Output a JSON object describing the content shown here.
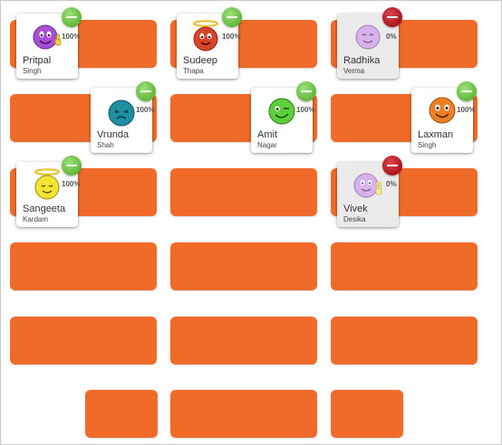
{
  "colors": {
    "desk": "#f06a2a",
    "present": "#5fb83a",
    "absent": "#a8141c"
  },
  "students": [
    {
      "first": "Pritpal",
      "last": "Singh",
      "percent": "100%",
      "status": "present",
      "avatar": "purple-smiley-thumbs-up-icon"
    },
    {
      "first": "Sudeep",
      "last": "Thapa",
      "percent": "100%",
      "status": "present",
      "avatar": "red-angel-smiley-icon"
    },
    {
      "first": "Radhika",
      "last": "Verma",
      "percent": "0%",
      "status": "absent",
      "avatar": "purple-smiley-icon"
    },
    {
      "first": "Vrunda",
      "last": "Shah",
      "percent": "100%",
      "status": "present",
      "avatar": "teal-smiley-icon"
    },
    {
      "first": "Amit",
      "last": "Nagar",
      "percent": "100%",
      "status": "present",
      "avatar": "green-winking-smiley-icon"
    },
    {
      "first": "Laxman",
      "last": "Singh",
      "percent": "100%",
      "status": "present",
      "avatar": "orange-smiley-icon"
    },
    {
      "first": "Sangeeta",
      "last": "Kardam",
      "percent": "100%",
      "status": "present",
      "avatar": "yellow-angel-smiley-icon"
    },
    {
      "first": "Vivek",
      "last": "Desika",
      "percent": "0%",
      "status": "absent",
      "avatar": "purple-smiley-peace-icon"
    }
  ]
}
